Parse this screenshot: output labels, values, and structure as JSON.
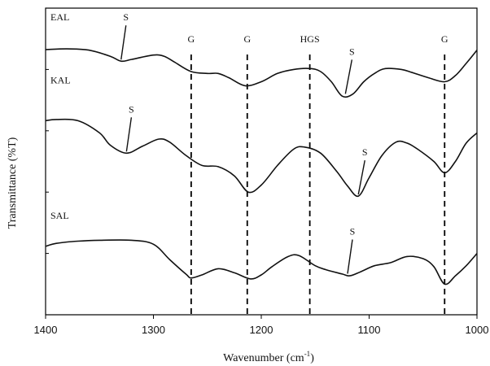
{
  "chart_data": {
    "type": "line",
    "title": "",
    "xlabel": "Wavenumber (cm",
    "xlabel_sup": "-1",
    "xlabel_close": ")",
    "ylabel": "Transmittance (%T)",
    "xlim": [
      1400,
      1000
    ],
    "ylim": [
      0,
      100
    ],
    "x_reversed": true,
    "grid": false,
    "x_ticks": [
      {
        "value": 1400,
        "label": "1400"
      },
      {
        "value": 1300,
        "label": "1300"
      },
      {
        "value": 1200,
        "label": "1200"
      },
      {
        "value": 1100,
        "label": "1100"
      },
      {
        "value": 1000,
        "label": "1000"
      }
    ],
    "vertical_markers": [
      {
        "x": 1265,
        "label": "G"
      },
      {
        "x": 1213,
        "label": "G"
      },
      {
        "x": 1155,
        "label": "HGS"
      },
      {
        "x": 1030,
        "label": "G"
      }
    ],
    "series": [
      {
        "name": "EAL",
        "points": [
          [
            1400,
            86.5
          ],
          [
            1380,
            86.7
          ],
          [
            1360,
            86.3
          ],
          [
            1340,
            84.3
          ],
          [
            1330,
            82.7
          ],
          [
            1320,
            83.3
          ],
          [
            1300,
            84.7
          ],
          [
            1290,
            84.3
          ],
          [
            1280,
            82.3
          ],
          [
            1265,
            79.3
          ],
          [
            1250,
            78.7
          ],
          [
            1240,
            78.7
          ],
          [
            1230,
            77.3
          ],
          [
            1215,
            74.7
          ],
          [
            1200,
            76.0
          ],
          [
            1185,
            78.7
          ],
          [
            1170,
            80.0
          ],
          [
            1155,
            80.3
          ],
          [
            1145,
            79.3
          ],
          [
            1135,
            76.0
          ],
          [
            1125,
            71.3
          ],
          [
            1115,
            72.0
          ],
          [
            1105,
            76.0
          ],
          [
            1095,
            78.7
          ],
          [
            1085,
            80.3
          ],
          [
            1070,
            80.0
          ],
          [
            1060,
            79.0
          ],
          [
            1045,
            77.3
          ],
          [
            1030,
            76.0
          ],
          [
            1020,
            78.0
          ],
          [
            1010,
            82.0
          ],
          [
            1000,
            86.3
          ]
        ]
      },
      {
        "name": "KAL",
        "points": [
          [
            1400,
            63.3
          ],
          [
            1390,
            63.7
          ],
          [
            1370,
            63.3
          ],
          [
            1350,
            59.3
          ],
          [
            1340,
            55.3
          ],
          [
            1325,
            52.7
          ],
          [
            1310,
            55.0
          ],
          [
            1295,
            57.3
          ],
          [
            1285,
            56.3
          ],
          [
            1270,
            52.0
          ],
          [
            1255,
            48.7
          ],
          [
            1240,
            48.3
          ],
          [
            1225,
            45.3
          ],
          [
            1212,
            40.0
          ],
          [
            1200,
            42.3
          ],
          [
            1185,
            48.7
          ],
          [
            1170,
            54.0
          ],
          [
            1160,
            54.7
          ],
          [
            1145,
            52.7
          ],
          [
            1130,
            46.7
          ],
          [
            1120,
            42.0
          ],
          [
            1110,
            38.7
          ],
          [
            1100,
            44.7
          ],
          [
            1088,
            52.0
          ],
          [
            1075,
            56.3
          ],
          [
            1065,
            56.0
          ],
          [
            1055,
            54.0
          ],
          [
            1040,
            50.0
          ],
          [
            1030,
            46.3
          ],
          [
            1020,
            50.0
          ],
          [
            1010,
            56.0
          ],
          [
            1000,
            59.3
          ]
        ]
      },
      {
        "name": "SAL",
        "points": [
          [
            1400,
            22.3
          ],
          [
            1390,
            23.3
          ],
          [
            1370,
            24.0
          ],
          [
            1350,
            24.3
          ],
          [
            1320,
            24.3
          ],
          [
            1300,
            23.0
          ],
          [
            1285,
            18.0
          ],
          [
            1270,
            13.3
          ],
          [
            1265,
            12.0
          ],
          [
            1255,
            13.0
          ],
          [
            1240,
            15.0
          ],
          [
            1225,
            13.7
          ],
          [
            1210,
            11.7
          ],
          [
            1200,
            13.0
          ],
          [
            1190,
            15.7
          ],
          [
            1175,
            19.0
          ],
          [
            1165,
            19.3
          ],
          [
            1150,
            16.0
          ],
          [
            1140,
            14.7
          ],
          [
            1125,
            13.3
          ],
          [
            1118,
            12.7
          ],
          [
            1108,
            14.0
          ],
          [
            1095,
            16.0
          ],
          [
            1080,
            17.0
          ],
          [
            1065,
            19.0
          ],
          [
            1050,
            18.3
          ],
          [
            1040,
            15.7
          ],
          [
            1030,
            10.0
          ],
          [
            1020,
            12.7
          ],
          [
            1010,
            16.0
          ],
          [
            1000,
            20.0
          ]
        ]
      }
    ],
    "s_labels": [
      {
        "text": "S",
        "series": "EAL",
        "x": 1330
      },
      {
        "text": "S",
        "series": "EAL",
        "x": 1122
      },
      {
        "text": "S",
        "series": "KAL",
        "x": 1325
      },
      {
        "text": "S",
        "series": "KAL",
        "x": 1110
      },
      {
        "text": "S",
        "series": "SAL",
        "x": 1120
      }
    ]
  }
}
